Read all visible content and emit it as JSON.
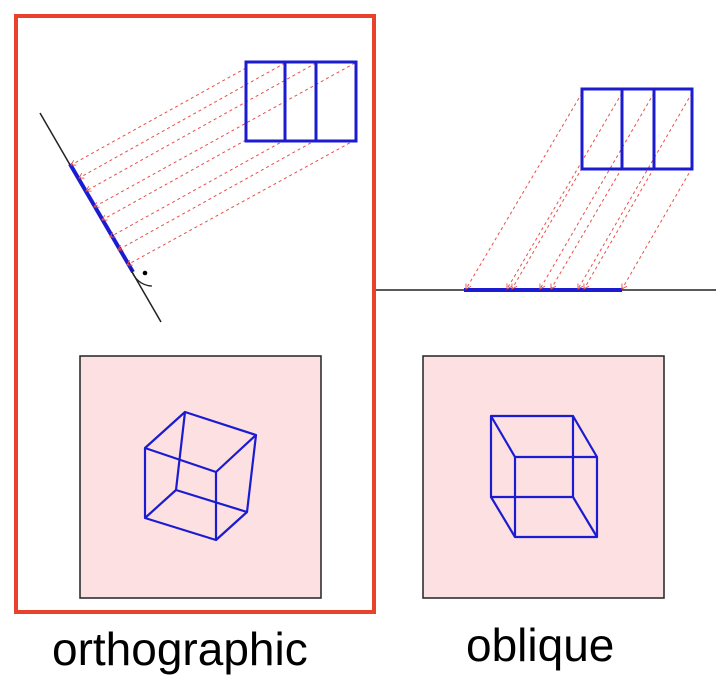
{
  "labels": {
    "orthographic": "orthographic",
    "oblique": "oblique"
  },
  "colors": {
    "highlight_frame": "#e8412c",
    "shape_stroke": "#1b1bd0",
    "projection_ray": "#e8504a",
    "view_background": "#fde0e2",
    "view_border": "#222222",
    "plane_line": "#222222"
  },
  "panels": [
    {
      "id": "orthographic",
      "highlighted": true,
      "projection": "perpendicular to plane",
      "right_angle_marker": true
    },
    {
      "id": "oblique",
      "highlighted": false,
      "projection": "slanted to plane",
      "right_angle_marker": false
    }
  ],
  "icons": [
    "right-angle-icon",
    "cube-wireframe-icon"
  ]
}
